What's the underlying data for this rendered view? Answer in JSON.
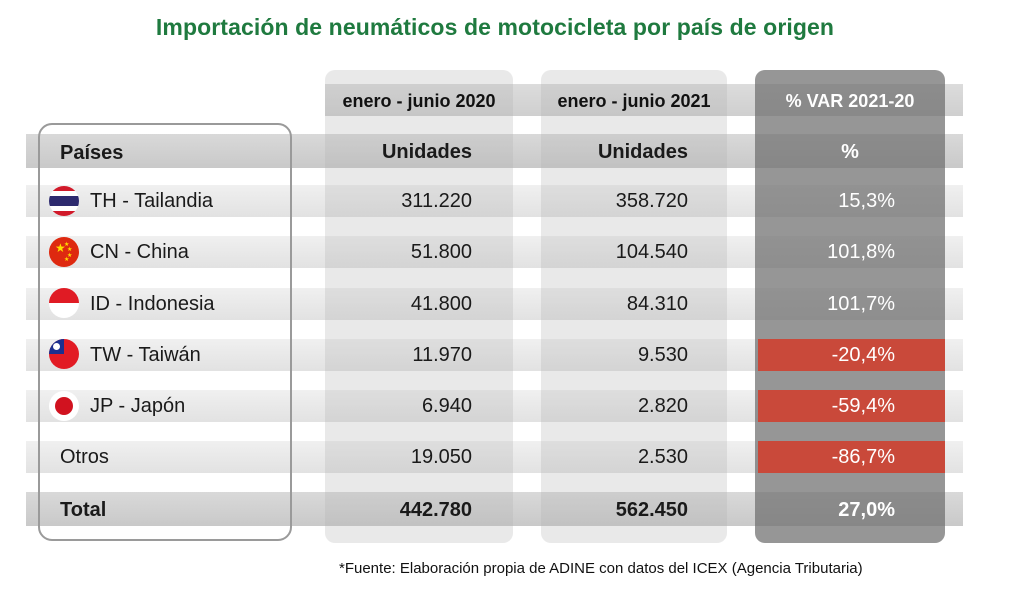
{
  "title": "Importación de neumáticos de motocicleta por país de origen",
  "periods": [
    "enero - junio  2020",
    "enero - junio 2021",
    "% VAR 2021-20"
  ],
  "headers": {
    "country": "Países",
    "units_2020": "Unidades",
    "units_2021": "Unidades",
    "pct": "%"
  },
  "rows": [
    {
      "country": "TH - Tailandia",
      "v2020": "311.220",
      "v2021": "358.720",
      "var": "15,3%",
      "flag": "thailand-flag-icon"
    },
    {
      "country": "CN - China",
      "v2020": "51.800",
      "v2021": "104.540",
      "var": "101,8%",
      "flag": "china-flag-icon"
    },
    {
      "country": "ID - Indonesia",
      "v2020": "41.800",
      "v2021": "84.310",
      "var": "101,7%",
      "flag": "indonesia-flag-icon"
    },
    {
      "country": "TW - Taiwán",
      "v2020": "11.970",
      "v2021": "9.530",
      "var": "-20,4%",
      "flag": "taiwan-flag-icon"
    },
    {
      "country": "JP - Japón",
      "v2020": "6.940",
      "v2021": "2.820",
      "var": "-59,4%",
      "flag": "japan-flag-icon"
    },
    {
      "country": "Otros",
      "v2020": "19.050",
      "v2021": "2.530",
      "var": "-86,7%",
      "flag": ""
    }
  ],
  "total": {
    "country": "Total",
    "v2020": "442.780",
    "v2021": "562.450",
    "var": "27,0%"
  },
  "footer": "*Fuente: Elaboración propia de ADINE con datos del ICEX (Agencia Tributaria)",
  "colors": {
    "title": "#1f7a3f",
    "negative": "#c9493a",
    "var_column": "#6e6e6e"
  },
  "chart_data": {
    "type": "table",
    "title": "Importación de neumáticos de motocicleta por país de origen",
    "columns": [
      "Países",
      "enero - junio 2020 (Unidades)",
      "enero - junio 2021 (Unidades)",
      "% VAR 2021-20"
    ],
    "categories": [
      "TH - Tailandia",
      "CN - China",
      "ID - Indonesia",
      "TW - Taiwán",
      "JP - Japón",
      "Otros",
      "Total"
    ],
    "series": [
      {
        "name": "enero - junio 2020",
        "values": [
          311220,
          51800,
          41800,
          11970,
          6940,
          19050,
          442780
        ]
      },
      {
        "name": "enero - junio 2021",
        "values": [
          358720,
          104540,
          84310,
          9530,
          2820,
          2530,
          562450
        ]
      },
      {
        "name": "% VAR 2021-20",
        "values": [
          15.3,
          101.8,
          101.7,
          -20.4,
          -59.4,
          -86.7,
          27.0
        ]
      }
    ]
  }
}
